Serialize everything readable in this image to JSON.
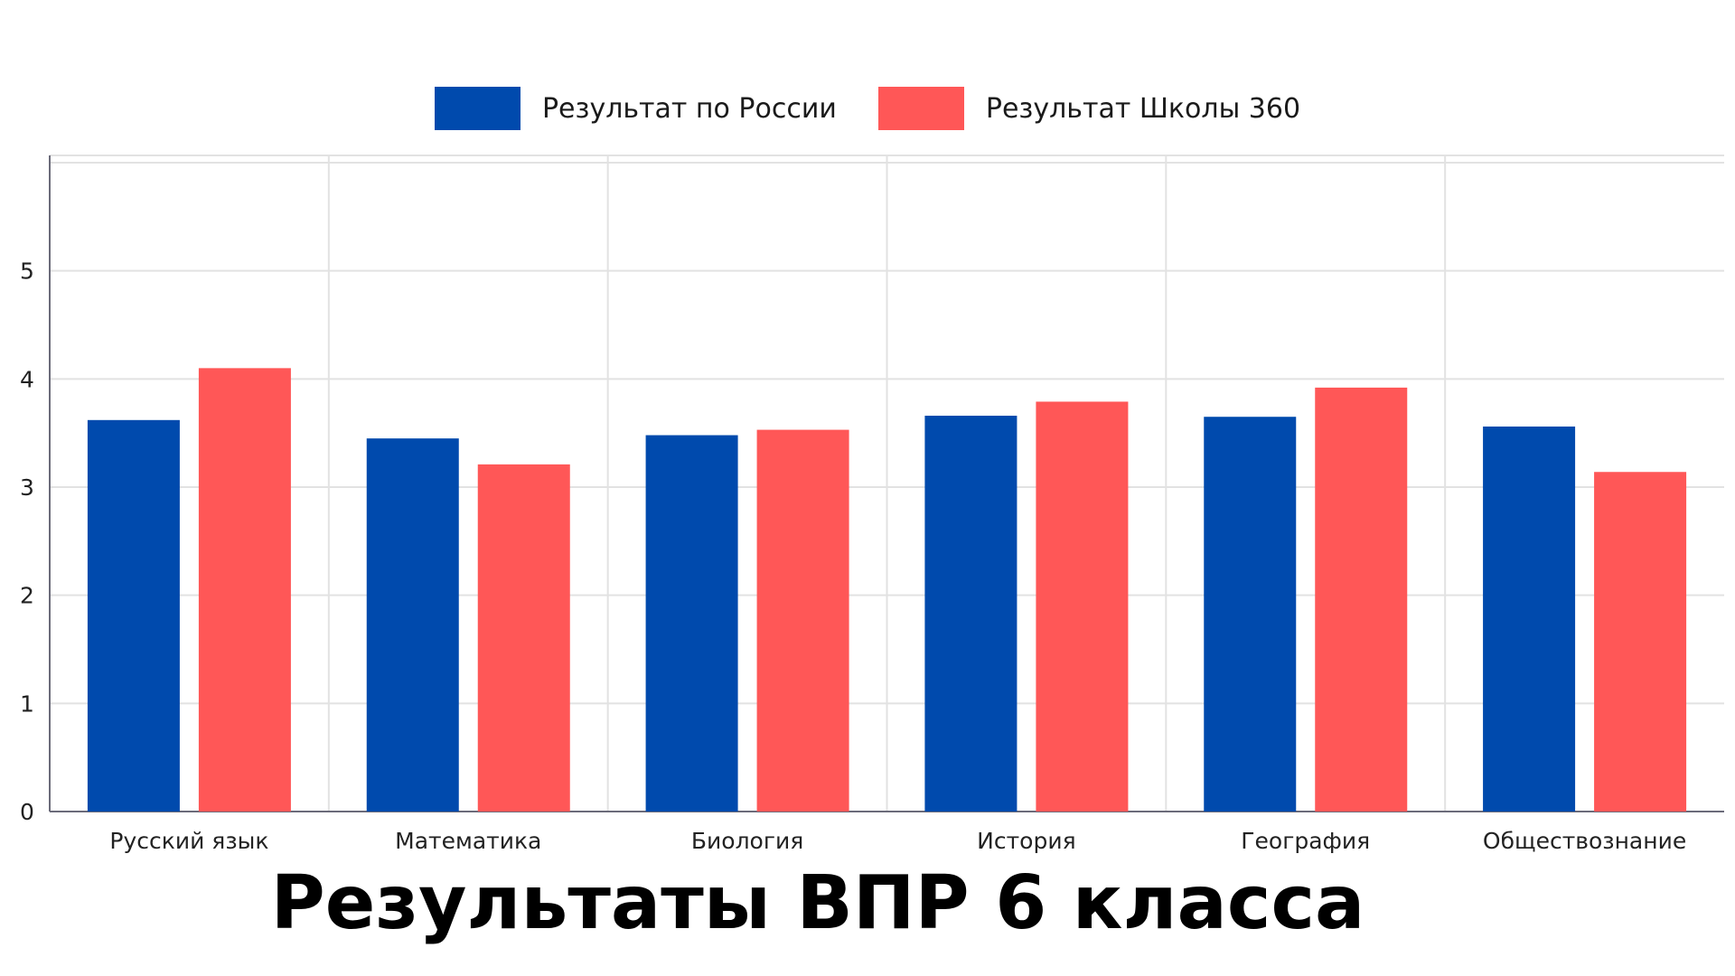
{
  "chart_data": {
    "type": "bar",
    "title": "Результаты ВПР 6 класса",
    "xlabel": "",
    "ylabel": "",
    "categories": [
      "Русский язык",
      "Математика",
      "Биология",
      "История",
      "География",
      "Обществознание"
    ],
    "series": [
      {
        "name": "Результат по России",
        "color": "#004aad",
        "values": [
          3.62,
          3.45,
          3.48,
          3.66,
          3.65,
          3.56
        ]
      },
      {
        "name": "Результат Школы 360",
        "color": "#ff5757",
        "values": [
          4.1,
          3.21,
          3.53,
          3.79,
          3.92,
          3.14
        ]
      }
    ],
    "ylim": [
      0,
      6
    ],
    "yticks": [
      0,
      1,
      2,
      3,
      4,
      5
    ],
    "grid": true,
    "legend_position": "top-center"
  }
}
